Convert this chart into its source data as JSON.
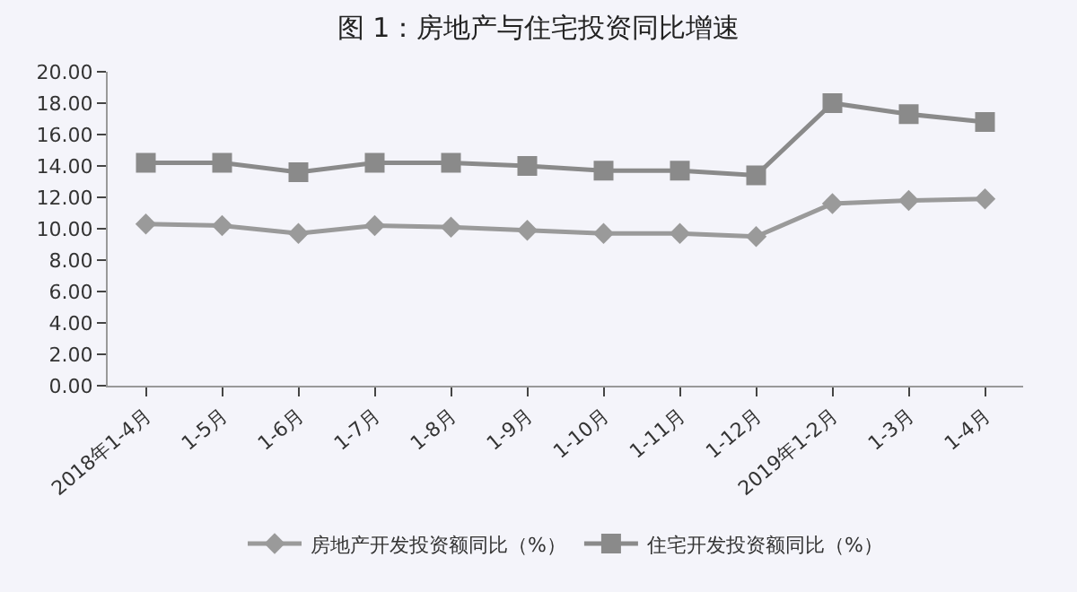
{
  "chart_data": {
    "type": "line",
    "title": "图 1：房地产与住宅投资同比增速",
    "categories": [
      "2018年1-4月",
      "1-5月",
      "1-6月",
      "1-7月",
      "1-8月",
      "1-9月",
      "1-10月",
      "1-11月",
      "1-12月",
      "2019年1-2月",
      "1-3月",
      "1-4月"
    ],
    "series": [
      {
        "name": "房地产开发投资额同比（%）",
        "color": "#9a9a9a",
        "marker": "diamond",
        "values": [
          10.3,
          10.2,
          9.7,
          10.2,
          10.1,
          9.9,
          9.7,
          9.7,
          9.5,
          11.6,
          11.8,
          11.9
        ]
      },
      {
        "name": "住宅开发投资额同比（%）",
        "color": "#8a8a8a",
        "marker": "square",
        "values": [
          14.2,
          14.2,
          13.6,
          14.2,
          14.2,
          14.0,
          13.7,
          13.7,
          13.4,
          18.0,
          17.3,
          16.8
        ]
      }
    ],
    "ylim": [
      0,
      20
    ],
    "yticks": [
      {
        "value": 0,
        "label": "0.00"
      },
      {
        "value": 2,
        "label": "2.00"
      },
      {
        "value": 4,
        "label": "4.00"
      },
      {
        "value": 6,
        "label": "6.00"
      },
      {
        "value": 8,
        "label": "8.00"
      },
      {
        "value": 10,
        "label": "10.00"
      },
      {
        "value": 12,
        "label": "12.00"
      },
      {
        "value": 14,
        "label": "14.00"
      },
      {
        "value": 16,
        "label": "16.00"
      },
      {
        "value": 18,
        "label": "18.00"
      },
      {
        "value": 20,
        "label": "20.00"
      }
    ],
    "grid": false,
    "legend": "bottom",
    "line_style": "solid"
  }
}
